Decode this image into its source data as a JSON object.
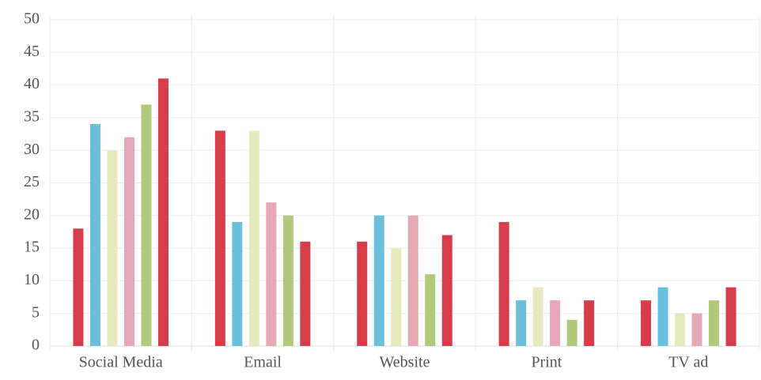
{
  "chart_data": {
    "type": "bar",
    "categories": [
      "Social Media",
      "Email",
      "Website",
      "Print",
      "TV ad"
    ],
    "series": [
      {
        "color": "#d63c4a",
        "values": [
          18,
          33,
          16,
          19,
          7
        ]
      },
      {
        "color": "#6bbfdb",
        "values": [
          34,
          19,
          20,
          7,
          9
        ]
      },
      {
        "color": "#e8e8bd",
        "values": [
          30,
          33,
          15,
          9,
          5
        ]
      },
      {
        "color": "#e6a8b4",
        "values": [
          32,
          22,
          20,
          7,
          5
        ]
      },
      {
        "color": "#b1c97a",
        "values": [
          37,
          20,
          11,
          4,
          7
        ]
      },
      {
        "color": "#d63c4a",
        "values": [
          41,
          16,
          17,
          7,
          9
        ]
      }
    ],
    "ylim": [
      0,
      50
    ],
    "yticks": [
      0,
      5,
      10,
      15,
      20,
      25,
      30,
      35,
      40,
      45,
      50
    ],
    "grid": true
  }
}
